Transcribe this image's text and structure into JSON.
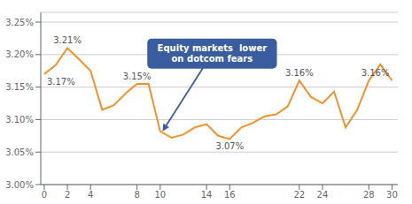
{
  "chart_data": {
    "type": "line",
    "x": [
      0,
      1,
      2,
      3,
      4,
      5,
      6,
      7,
      8,
      9,
      10,
      11,
      12,
      13,
      14,
      15,
      16,
      17,
      18,
      19,
      20,
      21,
      22,
      23,
      24,
      25,
      26,
      27,
      28,
      29,
      30
    ],
    "values": [
      3.17,
      3.184,
      3.21,
      3.193,
      3.175,
      3.115,
      3.122,
      3.14,
      3.155,
      3.155,
      3.082,
      3.072,
      3.077,
      3.088,
      3.093,
      3.075,
      3.07,
      3.088,
      3.095,
      3.105,
      3.108,
      3.12,
      3.16,
      3.135,
      3.125,
      3.143,
      3.088,
      3.115,
      3.16,
      3.185,
      3.16
    ],
    "color": "#F4922A",
    "xlim": [
      -0.3,
      30.5
    ],
    "xticks": [
      0,
      2,
      4,
      8,
      10,
      14,
      16,
      22,
      24,
      28,
      30
    ],
    "ylim": [
      3.0,
      3.265
    ],
    "yticks": [
      {
        "value": 3.0,
        "label": "3.00%"
      },
      {
        "value": 3.05,
        "label": "3.05%"
      },
      {
        "value": 3.1,
        "label": "3.10%"
      },
      {
        "value": 3.15,
        "label": "3.15%"
      },
      {
        "value": 3.2,
        "label": "3.20%"
      },
      {
        "value": 3.25,
        "label": "3.25%"
      }
    ],
    "grid": true,
    "annotations": [
      {
        "x": 0,
        "y": 3.17,
        "label": "3.17%",
        "position": "below"
      },
      {
        "x": 2,
        "y": 3.21,
        "label": "3.21%",
        "position": "above"
      },
      {
        "x": 8,
        "y": 3.155,
        "label": "3.15%",
        "position": "above"
      },
      {
        "x": 16,
        "y": 3.07,
        "label": "3.07%",
        "position": "below"
      },
      {
        "x": 22,
        "y": 3.16,
        "label": "3.16%",
        "position": "above"
      },
      {
        "x": 30,
        "y": 3.16,
        "label": "3.16%",
        "position": "above"
      }
    ],
    "callout": {
      "x": 10.2,
      "y": 3.082,
      "label": "Equity markets  lower\non dotcom fears",
      "color": "#3A5DA0"
    }
  }
}
